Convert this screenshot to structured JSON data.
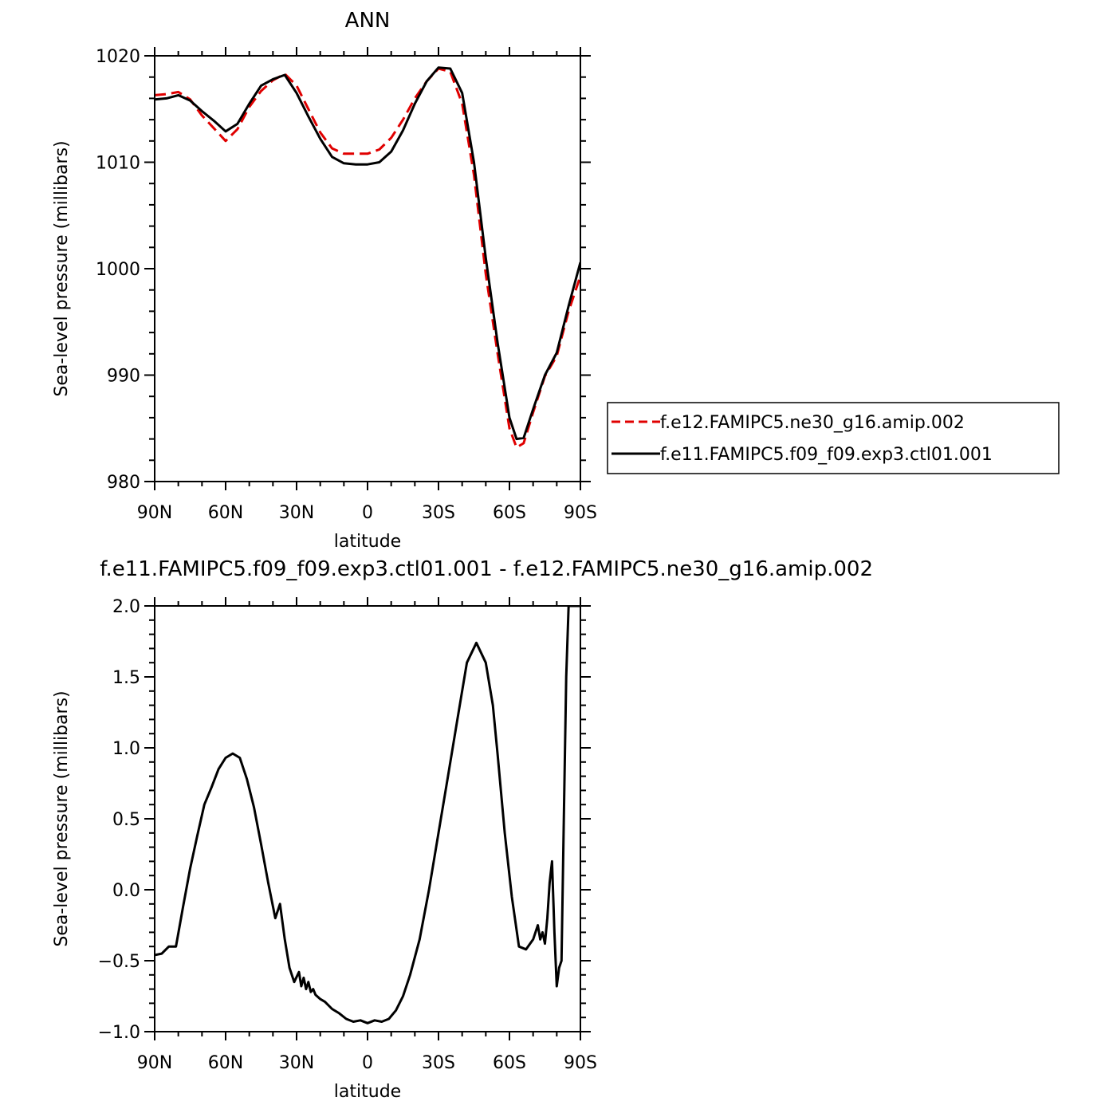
{
  "chart_data": [
    {
      "type": "line",
      "title": "ANN",
      "xlabel": "latitude",
      "ylabel": "Sea-level pressure (millibars)",
      "xlim": [
        90,
        -90
      ],
      "ylim": [
        980,
        1020
      ],
      "xticks": [
        90,
        60,
        30,
        0,
        -30,
        -60,
        -90
      ],
      "xtick_labels": [
        "90N",
        "60N",
        "30N",
        "0",
        "30S",
        "60S",
        "90S"
      ],
      "yticks": [
        980,
        990,
        1000,
        1010,
        1020
      ],
      "ytick_labels": [
        "980",
        "990",
        "1000",
        "1010",
        "1020"
      ],
      "grid": false,
      "legend_position": "right",
      "series": [
        {
          "name": "f.e12.FAMIPC5.ne30_g16.amip.002",
          "color": "#e00000",
          "dash": true,
          "x": [
            90,
            85,
            80,
            75,
            70,
            65,
            60,
            55,
            50,
            45,
            40,
            35,
            30,
            25,
            20,
            15,
            10,
            5,
            0,
            -5,
            -10,
            -15,
            -20,
            -25,
            -30,
            -35,
            -40,
            -45,
            -50,
            -55,
            -60,
            -63,
            -66,
            -70,
            -75,
            -80,
            -85,
            -90
          ],
          "y": [
            1016.3,
            1016.4,
            1016.6,
            1015.9,
            1014.4,
            1013.2,
            1012.0,
            1013.1,
            1015.2,
            1016.7,
            1017.7,
            1018.3,
            1017.2,
            1015.0,
            1012.8,
            1011.3,
            1010.8,
            1010.8,
            1010.8,
            1011.2,
            1012.3,
            1014.0,
            1016.0,
            1017.6,
            1018.8,
            1018.5,
            1015.5,
            1008.8,
            999.5,
            992.0,
            985.0,
            983.2,
            983.6,
            986.5,
            989.9,
            991.8,
            996.0,
            999.3
          ]
        },
        {
          "name": "f.e11.FAMIPC5.f09_f09.exp3.ctl01.001",
          "color": "#000000",
          "dash": false,
          "x": [
            90,
            85,
            80,
            75,
            70,
            65,
            60,
            55,
            50,
            45,
            40,
            35,
            30,
            25,
            20,
            15,
            10,
            5,
            0,
            -5,
            -10,
            -15,
            -20,
            -25,
            -30,
            -35,
            -40,
            -45,
            -50,
            -55,
            -60,
            -63,
            -66,
            -70,
            -75,
            -80,
            -85,
            -90
          ],
          "y": [
            1015.9,
            1016.0,
            1016.3,
            1015.8,
            1014.8,
            1013.9,
            1012.9,
            1013.6,
            1015.5,
            1017.2,
            1017.8,
            1018.2,
            1016.5,
            1014.3,
            1012.2,
            1010.5,
            1009.9,
            1009.8,
            1009.8,
            1010.0,
            1011.0,
            1013.0,
            1015.5,
            1017.6,
            1018.9,
            1018.8,
            1016.5,
            1010.0,
            1001.0,
            993.0,
            986.0,
            984.0,
            984.1,
            986.8,
            990.0,
            992.1,
            996.5,
            1000.6
          ]
        }
      ]
    },
    {
      "type": "line",
      "title": "f.e11.FAMIPC5.f09_f09.exp3.ctl01.001 - f.e12.FAMIPC5.ne30_g16.amip.002",
      "xlabel": "latitude",
      "ylabel": "Sea-level pressure (millibars)",
      "xlim": [
        90,
        -90
      ],
      "ylim": [
        -1.0,
        2.0
      ],
      "xticks": [
        90,
        60,
        30,
        0,
        -30,
        -60,
        -90
      ],
      "xtick_labels": [
        "90N",
        "60N",
        "30N",
        "0",
        "30S",
        "60S",
        "90S"
      ],
      "yticks": [
        -1.0,
        -0.5,
        0.0,
        0.5,
        1.0,
        1.5,
        2.0
      ],
      "ytick_labels": [
        "−1.0",
        "−0.5",
        "0.0",
        "0.5",
        "1.0",
        "1.5",
        "2.0"
      ],
      "grid": false,
      "series": [
        {
          "color": "#000000",
          "x": [
            90,
            87,
            84,
            81,
            78,
            75,
            72,
            69,
            66,
            63,
            60,
            57,
            54,
            51,
            48,
            45,
            42,
            39,
            37,
            35,
            33,
            31,
            29,
            28,
            27,
            26,
            25,
            24,
            23,
            22,
            20,
            18,
            15,
            12,
            9,
            6,
            3,
            0,
            -3,
            -6,
            -9,
            -12,
            -15,
            -18,
            -22,
            -26,
            -30,
            -34,
            -38,
            -42,
            -46,
            -50,
            -53,
            -55,
            -58,
            -61,
            -64,
            -67,
            -70,
            -72,
            -73,
            -74,
            -75,
            -76,
            -77,
            -78,
            -79,
            -80,
            -81,
            -82,
            -83,
            -84,
            -85,
            -86,
            -87,
            -88,
            -89,
            -90
          ],
          "y": [
            -0.46,
            -0.45,
            -0.4,
            -0.4,
            -0.12,
            0.15,
            0.38,
            0.6,
            0.72,
            0.85,
            0.93,
            0.96,
            0.93,
            0.78,
            0.58,
            0.32,
            0.05,
            -0.2,
            -0.1,
            -0.35,
            -0.55,
            -0.65,
            -0.58,
            -0.68,
            -0.62,
            -0.7,
            -0.65,
            -0.72,
            -0.7,
            -0.74,
            -0.77,
            -0.79,
            -0.84,
            -0.87,
            -0.91,
            -0.93,
            -0.92,
            -0.94,
            -0.92,
            -0.93,
            -0.91,
            -0.85,
            -0.75,
            -0.6,
            -0.35,
            0.0,
            0.4,
            0.8,
            1.2,
            1.6,
            1.74,
            1.6,
            1.3,
            0.95,
            0.4,
            -0.05,
            -0.4,
            -0.42,
            -0.35,
            -0.25,
            -0.35,
            -0.3,
            -0.38,
            -0.2,
            0.05,
            0.2,
            -0.3,
            -0.68,
            -0.55,
            -0.5,
            0.5,
            1.5,
            2.0,
            2.0,
            2.0,
            2.0,
            2.0,
            2.0
          ]
        }
      ]
    }
  ],
  "legend": {
    "items": [
      {
        "label": "f.e12.FAMIPC5.ne30_g16.amip.002"
      },
      {
        "label": "f.e11.FAMIPC5.f09_f09.exp3.ctl01.001"
      }
    ]
  }
}
